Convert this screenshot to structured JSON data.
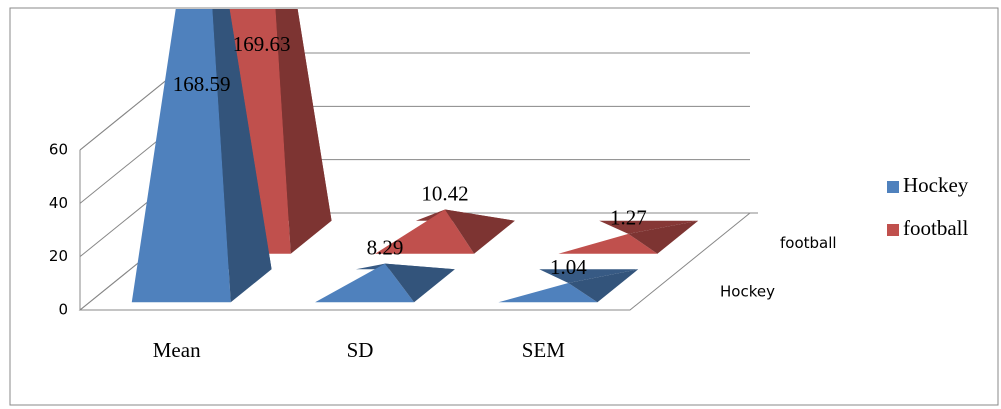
{
  "chart_data": {
    "type": "pyramid3d",
    "categories": [
      "Mean",
      "SD",
      "SEM"
    ],
    "series": [
      {
        "name": "Hockey",
        "color": "#4f81bd",
        "values": [
          168.59,
          8.29,
          1.04
        ]
      },
      {
        "name": "football",
        "color": "#c0504d",
        "values": [
          169.63,
          10.42,
          1.27
        ]
      }
    ],
    "ylim": [
      0,
      60
    ],
    "yticks": [
      0,
      20,
      40,
      60
    ],
    "grid": true
  }
}
